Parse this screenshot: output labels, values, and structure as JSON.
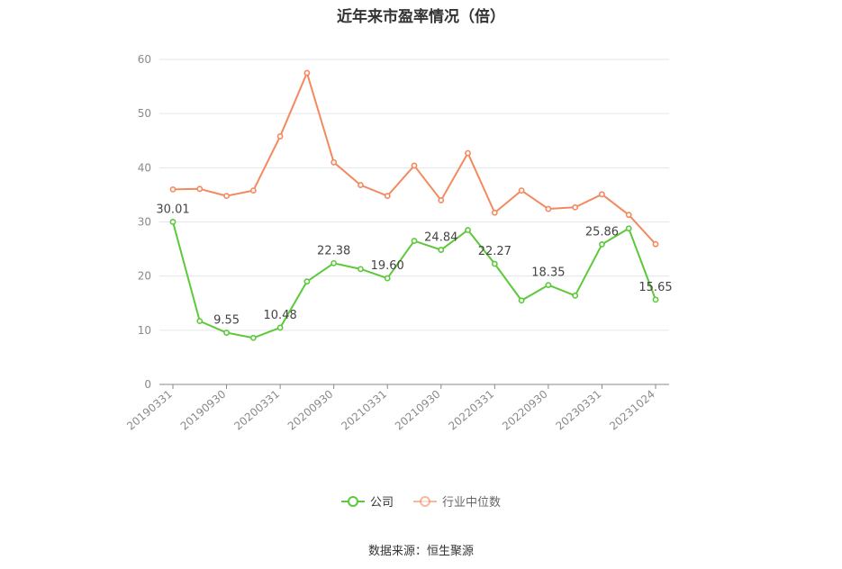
{
  "chart_data": {
    "type": "line",
    "title": "近年来市盈率情况（倍）",
    "ylim": [
      0,
      60
    ],
    "yticks": [
      0,
      10,
      20,
      30,
      40,
      50,
      60
    ],
    "grid": true,
    "legend_position": "bottom",
    "x": [
      "20190331",
      "20190630",
      "20190930",
      "20191231",
      "20200331",
      "20200630",
      "20200930",
      "20201231",
      "20210331",
      "20210630",
      "20210930",
      "20211231",
      "20220331",
      "20220630",
      "20220930",
      "20221231",
      "20230331",
      "20230630",
      "20231024"
    ],
    "xtick_labels": [
      "20190331",
      "20190930",
      "20200331",
      "20200930",
      "20210331",
      "20210930",
      "20220331",
      "20220930",
      "20230331",
      "20231024"
    ],
    "series": [
      {
        "name": "公司",
        "color": "#5cc93a",
        "values": [
          30.01,
          11.7,
          9.55,
          8.6,
          10.48,
          19.0,
          22.38,
          21.3,
          19.6,
          26.5,
          24.84,
          28.5,
          22.27,
          15.5,
          18.35,
          16.4,
          25.86,
          28.8,
          15.65
        ],
        "data_labels": {
          "0": "30.01",
          "2": "9.55",
          "4": "10.48",
          "6": "22.38",
          "8": "19.60",
          "10": "24.84",
          "12": "22.27",
          "14": "18.35",
          "16": "25.86",
          "18": "15.65"
        }
      },
      {
        "name": "行业中位数",
        "color": "#f4895f",
        "values": [
          36.0,
          36.1,
          34.8,
          35.8,
          45.8,
          57.5,
          41.0,
          36.8,
          34.8,
          40.4,
          34.0,
          42.7,
          31.7,
          35.8,
          32.4,
          32.7,
          35.1,
          31.3,
          25.9
        ]
      }
    ]
  },
  "source": "数据来源：恒生聚源"
}
